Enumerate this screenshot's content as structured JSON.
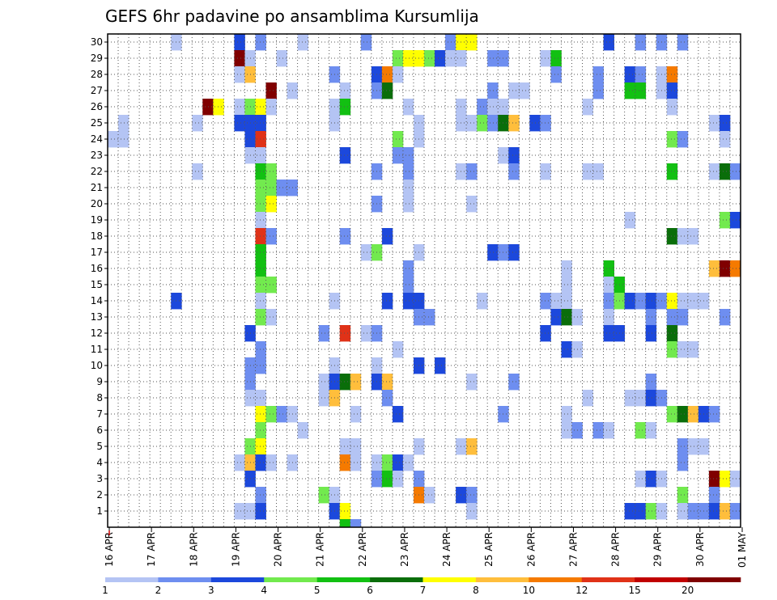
{
  "chart_data": {
    "type": "heatmap",
    "title": "GEFS 6hr padavine po ansamblima Kursumlija",
    "xlabel": "",
    "ylabel": "",
    "y_ticks": [
      "1",
      "2",
      "3",
      "4",
      "5",
      "6",
      "7",
      "8",
      "9",
      "10",
      "11",
      "12",
      "13",
      "14",
      "15",
      "16",
      "17",
      "18",
      "19",
      "20",
      "21",
      "22",
      "23",
      "24",
      "25",
      "26",
      "27",
      "28",
      "29",
      "30"
    ],
    "x_ticks": [
      "16 APR",
      "17 APR",
      "18 APR",
      "19 APR",
      "20 APR",
      "21 APR",
      "22 APR",
      "23 APR",
      "24 APR",
      "25 APR",
      "26 APR",
      "27 APR",
      "28 APR",
      "29 APR",
      "30 APR",
      "01 MAY"
    ],
    "x_steps_total": 60,
    "member_count": 30,
    "grid": true,
    "colorbar": {
      "levels": [
        "1",
        "2",
        "3",
        "4",
        "5",
        "6",
        "7",
        "8",
        "10",
        "12",
        "15",
        "20"
      ],
      "colors": [
        "#b4c4f4",
        "#6e8ef0",
        "#1c48dc",
        "#72ea4e",
        "#12c012",
        "#0a6e0a",
        "#ffff00",
        "#ffbe3c",
        "#f57a00",
        "#e03218",
        "#c00000",
        "#800000"
      ]
    },
    "cells": [
      [
        19,
        30,
        0
      ],
      [
        33,
        30,
        1
      ],
      [
        34,
        30,
        6
      ],
      [
        35,
        30,
        6
      ],
      [
        48,
        30,
        2
      ],
      [
        51,
        30,
        1
      ],
      [
        53,
        30,
        1
      ],
      [
        55,
        30,
        1
      ],
      [
        25,
        30,
        1
      ],
      [
        13,
        30,
        2
      ],
      [
        15,
        30,
        1
      ],
      [
        7,
        30,
        0
      ],
      [
        13,
        29,
        11
      ],
      [
        14,
        29,
        0
      ],
      [
        17,
        29,
        0
      ],
      [
        28,
        29,
        3
      ],
      [
        29,
        29,
        6
      ],
      [
        30,
        29,
        6
      ],
      [
        31,
        29,
        3
      ],
      [
        32,
        29,
        2
      ],
      [
        33,
        29,
        0
      ],
      [
        34,
        29,
        0
      ],
      [
        37,
        29,
        1
      ],
      [
        38,
        29,
        1
      ],
      [
        42,
        29,
        0
      ],
      [
        43,
        29,
        4
      ],
      [
        13,
        28,
        0
      ],
      [
        14,
        28,
        7
      ],
      [
        22,
        28,
        1
      ],
      [
        26,
        28,
        2
      ],
      [
        27,
        28,
        8
      ],
      [
        28,
        28,
        0
      ],
      [
        43,
        28,
        1
      ],
      [
        47,
        28,
        1
      ],
      [
        50,
        28,
        2
      ],
      [
        51,
        28,
        1
      ],
      [
        53,
        28,
        0
      ],
      [
        54,
        28,
        8
      ],
      [
        16,
        27,
        11
      ],
      [
        18,
        27,
        0
      ],
      [
        23,
        27,
        0
      ],
      [
        26,
        27,
        1
      ],
      [
        27,
        27,
        5
      ],
      [
        37,
        27,
        1
      ],
      [
        39,
        27,
        0
      ],
      [
        40,
        27,
        0
      ],
      [
        47,
        27,
        1
      ],
      [
        50,
        27,
        4
      ],
      [
        51,
        27,
        4
      ],
      [
        53,
        27,
        0
      ],
      [
        54,
        27,
        2
      ],
      [
        10,
        26,
        11
      ],
      [
        11,
        26,
        6
      ],
      [
        13,
        26,
        0
      ],
      [
        14,
        26,
        3
      ],
      [
        15,
        26,
        6
      ],
      [
        16,
        26,
        0
      ],
      [
        22,
        26,
        0
      ],
      [
        23,
        26,
        4
      ],
      [
        29,
        26,
        0
      ],
      [
        34,
        26,
        0
      ],
      [
        36,
        26,
        1
      ],
      [
        37,
        26,
        0
      ],
      [
        38,
        26,
        0
      ],
      [
        46,
        26,
        0
      ],
      [
        54,
        26,
        0
      ],
      [
        2,
        25,
        0
      ],
      [
        9,
        25,
        0
      ],
      [
        13,
        25,
        2
      ],
      [
        14,
        25,
        2
      ],
      [
        15,
        25,
        2
      ],
      [
        22,
        25,
        0
      ],
      [
        30,
        25,
        0
      ],
      [
        34,
        25,
        0
      ],
      [
        35,
        25,
        0
      ],
      [
        36,
        25,
        3
      ],
      [
        37,
        25,
        1
      ],
      [
        38,
        25,
        5
      ],
      [
        39,
        25,
        7
      ],
      [
        41,
        25,
        2
      ],
      [
        42,
        25,
        1
      ],
      [
        58,
        25,
        0
      ],
      [
        59,
        25,
        2
      ],
      [
        1,
        24,
        0
      ],
      [
        2,
        24,
        0
      ],
      [
        14,
        24,
        2
      ],
      [
        15,
        24,
        9
      ],
      [
        28,
        24,
        3
      ],
      [
        30,
        24,
        0
      ],
      [
        54,
        24,
        3
      ],
      [
        55,
        24,
        1
      ],
      [
        59,
        24,
        0
      ],
      [
        14,
        23,
        0
      ],
      [
        15,
        23,
        0
      ],
      [
        23,
        23,
        2
      ],
      [
        28,
        23,
        1
      ],
      [
        29,
        23,
        1
      ],
      [
        38,
        23,
        0
      ],
      [
        39,
        23,
        2
      ],
      [
        9,
        22,
        0
      ],
      [
        15,
        22,
        4
      ],
      [
        16,
        22,
        3
      ],
      [
        26,
        22,
        1
      ],
      [
        29,
        22,
        1
      ],
      [
        34,
        22,
        0
      ],
      [
        35,
        22,
        1
      ],
      [
        39,
        22,
        1
      ],
      [
        42,
        22,
        0
      ],
      [
        46,
        22,
        0
      ],
      [
        47,
        22,
        0
      ],
      [
        54,
        22,
        4
      ],
      [
        58,
        22,
        0
      ],
      [
        59,
        22,
        5
      ],
      [
        60,
        22,
        1
      ],
      [
        15,
        21,
        3
      ],
      [
        16,
        21,
        3
      ],
      [
        17,
        21,
        1
      ],
      [
        18,
        21,
        1
      ],
      [
        29,
        21,
        0
      ],
      [
        15,
        20,
        3
      ],
      [
        16,
        20,
        6
      ],
      [
        26,
        20,
        1
      ],
      [
        29,
        20,
        0
      ],
      [
        35,
        20,
        0
      ],
      [
        15,
        19,
        0
      ],
      [
        50,
        19,
        0
      ],
      [
        59,
        19,
        3
      ],
      [
        60,
        19,
        2
      ],
      [
        15,
        18,
        9
      ],
      [
        16,
        18,
        1
      ],
      [
        23,
        18,
        1
      ],
      [
        27,
        18,
        2
      ],
      [
        54,
        18,
        5
      ],
      [
        55,
        18,
        0
      ],
      [
        56,
        18,
        0
      ],
      [
        15,
        17,
        4
      ],
      [
        25,
        17,
        0
      ],
      [
        26,
        17,
        3
      ],
      [
        30,
        17,
        0
      ],
      [
        37,
        17,
        2
      ],
      [
        38,
        17,
        1
      ],
      [
        39,
        17,
        2
      ],
      [
        15,
        16,
        4
      ],
      [
        29,
        16,
        1
      ],
      [
        44,
        16,
        0
      ],
      [
        48,
        16,
        4
      ],
      [
        58,
        16,
        7
      ],
      [
        59,
        16,
        11
      ],
      [
        60,
        16,
        8
      ],
      [
        15,
        15,
        3
      ],
      [
        16,
        15,
        3
      ],
      [
        29,
        15,
        1
      ],
      [
        44,
        15,
        0
      ],
      [
        48,
        15,
        0
      ],
      [
        49,
        15,
        4
      ],
      [
        7,
        14,
        2
      ],
      [
        15,
        14,
        0
      ],
      [
        22,
        14,
        0
      ],
      [
        27,
        14,
        2
      ],
      [
        29,
        14,
        2
      ],
      [
        30,
        14,
        2
      ],
      [
        36,
        14,
        0
      ],
      [
        42,
        14,
        1
      ],
      [
        43,
        14,
        0
      ],
      [
        44,
        14,
        0
      ],
      [
        48,
        14,
        1
      ],
      [
        49,
        14,
        3
      ],
      [
        50,
        14,
        2
      ],
      [
        51,
        14,
        1
      ],
      [
        52,
        14,
        2
      ],
      [
        53,
        14,
        1
      ],
      [
        54,
        14,
        6
      ],
      [
        55,
        14,
        0
      ],
      [
        56,
        14,
        0
      ],
      [
        57,
        14,
        0
      ],
      [
        15,
        13,
        3
      ],
      [
        16,
        13,
        0
      ],
      [
        30,
        13,
        1
      ],
      [
        31,
        13,
        1
      ],
      [
        43,
        13,
        2
      ],
      [
        44,
        13,
        5
      ],
      [
        45,
        13,
        0
      ],
      [
        48,
        13,
        0
      ],
      [
        52,
        13,
        1
      ],
      [
        54,
        13,
        1
      ],
      [
        55,
        13,
        1
      ],
      [
        59,
        13,
        1
      ],
      [
        14,
        12,
        2
      ],
      [
        21,
        12,
        1
      ],
      [
        23,
        12,
        9
      ],
      [
        25,
        12,
        0
      ],
      [
        26,
        12,
        1
      ],
      [
        42,
        12,
        2
      ],
      [
        48,
        12,
        2
      ],
      [
        49,
        12,
        2
      ],
      [
        52,
        12,
        2
      ],
      [
        54,
        12,
        5
      ],
      [
        15,
        11,
        1
      ],
      [
        28,
        11,
        0
      ],
      [
        44,
        11,
        2
      ],
      [
        45,
        11,
        0
      ],
      [
        54,
        11,
        3
      ],
      [
        55,
        11,
        0
      ],
      [
        56,
        11,
        0
      ],
      [
        14,
        10,
        1
      ],
      [
        15,
        10,
        1
      ],
      [
        22,
        10,
        0
      ],
      [
        26,
        10,
        0
      ],
      [
        30,
        10,
        2
      ],
      [
        32,
        10,
        2
      ],
      [
        14,
        9,
        1
      ],
      [
        21,
        9,
        0
      ],
      [
        22,
        9,
        2
      ],
      [
        23,
        9,
        5
      ],
      [
        24,
        9,
        7
      ],
      [
        26,
        9,
        2
      ],
      [
        27,
        9,
        7
      ],
      [
        35,
        9,
        0
      ],
      [
        39,
        9,
        1
      ],
      [
        52,
        9,
        1
      ],
      [
        14,
        8,
        0
      ],
      [
        15,
        8,
        0
      ],
      [
        21,
        8,
        0
      ],
      [
        22,
        8,
        7
      ],
      [
        27,
        8,
        1
      ],
      [
        46,
        8,
        0
      ],
      [
        50,
        8,
        0
      ],
      [
        51,
        8,
        0
      ],
      [
        52,
        8,
        2
      ],
      [
        53,
        8,
        1
      ],
      [
        15,
        7,
        6
      ],
      [
        16,
        7,
        3
      ],
      [
        17,
        7,
        1
      ],
      [
        18,
        7,
        0
      ],
      [
        24,
        7,
        0
      ],
      [
        28,
        7,
        2
      ],
      [
        38,
        7,
        1
      ],
      [
        44,
        7,
        0
      ],
      [
        54,
        7,
        3
      ],
      [
        55,
        7,
        5
      ],
      [
        56,
        7,
        7
      ],
      [
        57,
        7,
        2
      ],
      [
        58,
        7,
        1
      ],
      [
        15,
        6,
        3
      ],
      [
        19,
        6,
        0
      ],
      [
        44,
        6,
        0
      ],
      [
        45,
        6,
        1
      ],
      [
        47,
        6,
        1
      ],
      [
        48,
        6,
        0
      ],
      [
        51,
        6,
        3
      ],
      [
        52,
        6,
        0
      ],
      [
        14,
        5,
        3
      ],
      [
        15,
        5,
        6
      ],
      [
        23,
        5,
        0
      ],
      [
        24,
        5,
        0
      ],
      [
        30,
        5,
        0
      ],
      [
        34,
        5,
        0
      ],
      [
        35,
        5,
        7
      ],
      [
        55,
        5,
        1
      ],
      [
        56,
        5,
        0
      ],
      [
        57,
        5,
        0
      ],
      [
        13,
        4,
        0
      ],
      [
        14,
        4,
        7
      ],
      [
        15,
        4,
        2
      ],
      [
        16,
        4,
        0
      ],
      [
        18,
        4,
        0
      ],
      [
        23,
        4,
        8
      ],
      [
        24,
        4,
        0
      ],
      [
        26,
        4,
        0
      ],
      [
        27,
        4,
        3
      ],
      [
        28,
        4,
        2
      ],
      [
        29,
        4,
        0
      ],
      [
        55,
        4,
        1
      ],
      [
        14,
        3,
        2
      ],
      [
        26,
        3,
        1
      ],
      [
        27,
        3,
        4
      ],
      [
        28,
        3,
        0
      ],
      [
        30,
        3,
        1
      ],
      [
        51,
        3,
        0
      ],
      [
        52,
        3,
        2
      ],
      [
        53,
        3,
        0
      ],
      [
        58,
        3,
        11
      ],
      [
        59,
        3,
        6
      ],
      [
        60,
        3,
        0
      ],
      [
        15,
        2,
        1
      ],
      [
        21,
        2,
        3
      ],
      [
        22,
        2,
        0
      ],
      [
        30,
        2,
        8
      ],
      [
        31,
        2,
        0
      ],
      [
        34,
        2,
        2
      ],
      [
        35,
        2,
        1
      ],
      [
        55,
        2,
        3
      ],
      [
        58,
        2,
        1
      ],
      [
        13,
        1,
        0
      ],
      [
        14,
        1,
        0
      ],
      [
        15,
        1,
        2
      ],
      [
        22,
        1,
        2
      ],
      [
        23,
        1,
        6
      ],
      [
        35,
        1,
        0
      ],
      [
        50,
        1,
        2
      ],
      [
        51,
        1,
        2
      ],
      [
        52,
        1,
        3
      ],
      [
        53,
        1,
        0
      ],
      [
        55,
        1,
        0
      ],
      [
        56,
        1,
        1
      ],
      [
        57,
        1,
        1
      ],
      [
        58,
        1,
        2
      ],
      [
        59,
        1,
        7
      ],
      [
        60,
        1,
        1
      ],
      [
        23,
        0,
        4
      ],
      [
        24,
        0,
        1
      ]
    ]
  }
}
